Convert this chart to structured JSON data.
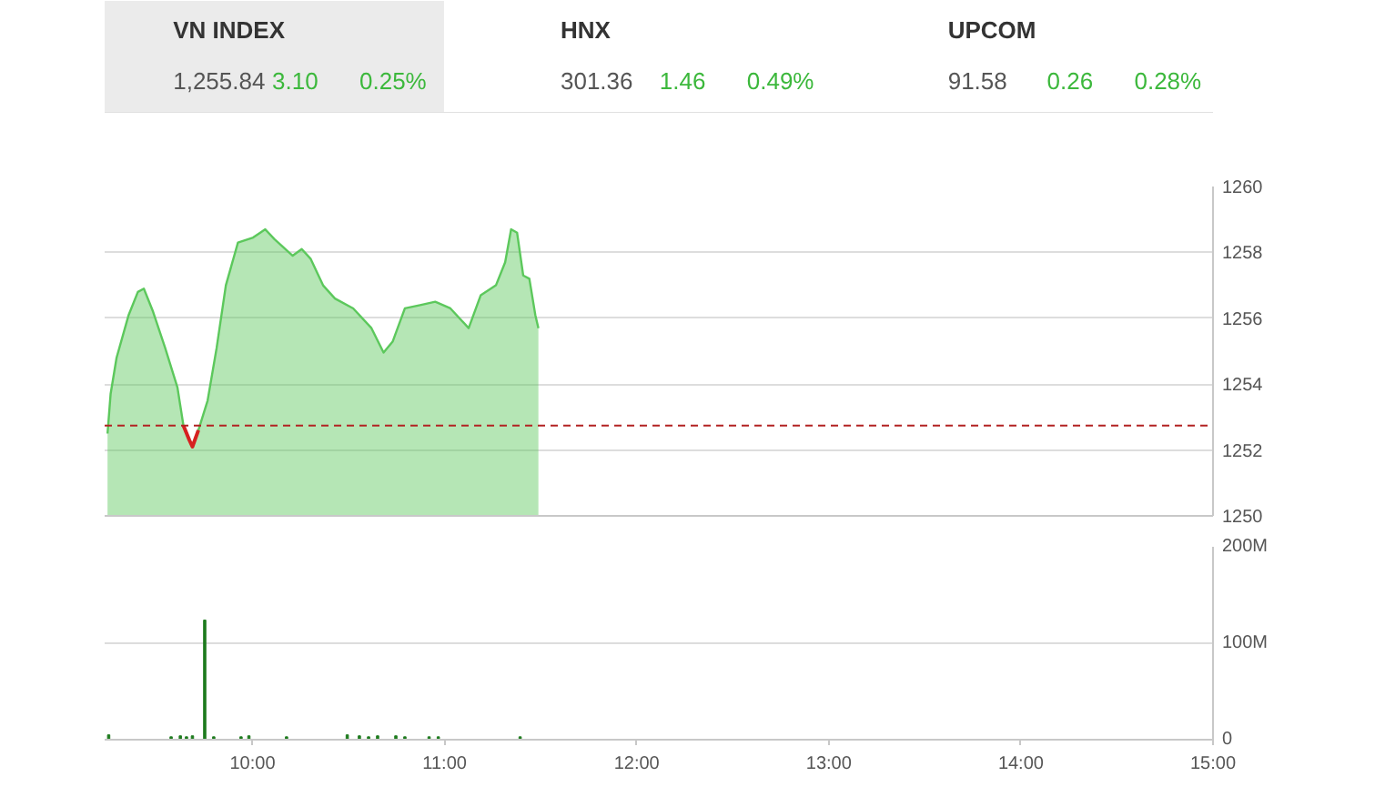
{
  "chart_data": [
    {
      "type": "area",
      "annotations": [
        "VN INDEX",
        "1,255.84",
        "3.10",
        "0.25%",
        "HNX",
        "301.36",
        "1.46",
        "0.49%",
        "UPCOM",
        "91.58",
        "0.26",
        "0.28%"
      ],
      "x": [
        9.245,
        9.261,
        9.292,
        9.355,
        9.403,
        9.434,
        9.482,
        9.545,
        9.609,
        9.64,
        9.671,
        9.687,
        9.718,
        9.766,
        9.813,
        9.861,
        9.924,
        10.003,
        10.066,
        10.114,
        10.209,
        10.256,
        10.303,
        10.367,
        10.429,
        10.524,
        10.619,
        10.682,
        10.73,
        10.793,
        10.872,
        10.951,
        11.03,
        11.125,
        11.188,
        11.267,
        11.315,
        11.346,
        11.377,
        11.409,
        11.441,
        11.472,
        11.488
      ],
      "series": [
        {
          "type": "area",
          "color": "#5cc85c",
          "values": [
            1252.5,
            1253.7,
            1254.8,
            1256.1,
            1256.8,
            1256.9,
            1256.2,
            1255.1,
            1253.9,
            1252.75,
            1252.3,
            1252.1,
            1252.6,
            1253.5,
            1255.1,
            1257.0,
            1258.3,
            1258.45,
            1258.7,
            1258.4,
            1257.9,
            1258.1,
            1257.8,
            1257.0,
            1256.6,
            1256.3,
            1255.7,
            1254.96,
            1255.3,
            1256.3,
            1256.4,
            1256.5,
            1256.3,
            1255.7,
            1256.7,
            1257.0,
            1257.7,
            1258.7,
            1258.6,
            1257.3,
            1257.2,
            1256.1,
            1255.7
          ]
        },
        {
          "type": "line",
          "color": "#d62020",
          "x": [
            9.64,
            9.671,
            9.687,
            9.718
          ],
          "values": [
            1252.74,
            1252.3,
            1252.1,
            1252.6
          ]
        }
      ],
      "xlim": [
        9.23,
        15
      ],
      "ylim": [
        1250,
        1260
      ],
      "yticks": [
        1250,
        1252,
        1254,
        1256,
        1258,
        1260
      ],
      "ref_lines": [
        {
          "axis": "y",
          "value": 1252.74,
          "color": "#b22222",
          "line_style": "dashed"
        }
      ],
      "grid": "y",
      "tick_labels": "y"
    },
    {
      "type": "bar",
      "color": "#1e7b1e",
      "x": [
        9.251,
        9.576,
        9.624,
        9.656,
        9.687,
        9.751,
        9.798,
        9.94,
        9.981,
        10.177,
        10.493,
        10.556,
        10.604,
        10.651,
        10.746,
        10.793,
        10.919,
        10.967,
        11.393
      ],
      "values": [
        5,
        3,
        4,
        3,
        4,
        124,
        3,
        3,
        4,
        3,
        5,
        4,
        3,
        4,
        4,
        3,
        3,
        3,
        3
      ],
      "xlim": [
        9.23,
        15
      ],
      "xticks": [
        {
          "value": 10,
          "label": "10:00"
        },
        {
          "value": 11,
          "label": "11:00"
        },
        {
          "value": 12,
          "label": "12:00"
        },
        {
          "value": 13,
          "label": "13:00"
        },
        {
          "value": 14,
          "label": "14:00"
        },
        {
          "value": 15,
          "label": "15:00"
        }
      ],
      "ylim": [
        0,
        200
      ],
      "yticks": [
        {
          "value": 0,
          "label": "0"
        },
        {
          "value": 100,
          "label": "100M"
        },
        {
          "value": 200,
          "label": "200M"
        }
      ],
      "grid": "y"
    }
  ]
}
